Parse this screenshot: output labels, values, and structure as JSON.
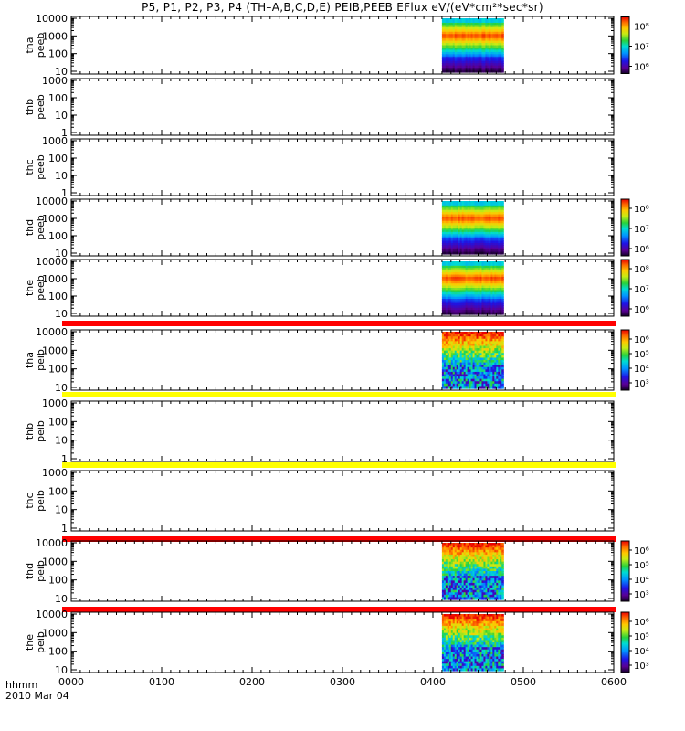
{
  "title": "P5, P1, P2, P3, P4 (TH–A,B,C,D,E) PEIB,PEEB EFlux eV/(eV*cm²*sec*sr)",
  "footer": {
    "hhmm": "hhmm",
    "date": "2010 Mar 04"
  },
  "chart_data": {
    "type": "heatmap",
    "x_axis": {
      "range": [
        0,
        600
      ],
      "tick_values": [
        0,
        100,
        200,
        300,
        400,
        500,
        600
      ],
      "tick_labels": [
        "0000",
        "0100",
        "0200",
        "0300",
        "0400",
        "0500",
        "0600"
      ]
    },
    "panels": [
      {
        "probe": "tha",
        "product": "peeb",
        "ylabels": [
          "10000",
          "1000",
          "100",
          "10"
        ],
        "ylog": [
          1,
          4
        ],
        "yvals": [
          10000,
          1000,
          100,
          10
        ],
        "data_x": [
          410,
          478
        ],
        "kind": "electron",
        "colorbar": {
          "labels": [
            "10⁸",
            "10⁷",
            "10⁶"
          ]
        },
        "indicator_bar": null
      },
      {
        "probe": "thb",
        "product": "peeb",
        "ylabels": [
          "1000",
          "100",
          "10",
          "1"
        ],
        "ylog": [
          0,
          3
        ],
        "yvals": [
          1000,
          100,
          10,
          1
        ],
        "data_x": null,
        "kind": "none",
        "colorbar": null,
        "indicator_bar": null
      },
      {
        "probe": "thc",
        "product": "peeb",
        "ylabels": [
          "1000",
          "100",
          "10",
          "1"
        ],
        "ylog": [
          0,
          3
        ],
        "yvals": [
          1000,
          100,
          10,
          1
        ],
        "data_x": null,
        "kind": "none",
        "colorbar": null,
        "indicator_bar": null
      },
      {
        "probe": "thd",
        "product": "peeb",
        "ylabels": [
          "10000",
          "1000",
          "100",
          "10"
        ],
        "ylog": [
          1,
          4
        ],
        "yvals": [
          10000,
          1000,
          100,
          10
        ],
        "data_x": [
          410,
          478
        ],
        "kind": "electron",
        "colorbar": {
          "labels": [
            "10⁸",
            "10⁷",
            "10⁶"
          ]
        },
        "indicator_bar": null
      },
      {
        "probe": "the",
        "product": "peeb",
        "ylabels": [
          "10000",
          "1000",
          "100",
          "10"
        ],
        "ylog": [
          1,
          4
        ],
        "yvals": [
          10000,
          1000,
          100,
          10
        ],
        "data_x": [
          410,
          478
        ],
        "kind": "electron",
        "colorbar": {
          "labels": [
            "10⁸",
            "10⁷",
            "10⁶"
          ]
        },
        "indicator_bar": null
      },
      {
        "probe": "tha",
        "product": "peib",
        "ylabels": [
          "10000",
          "1000",
          "100",
          "10"
        ],
        "ylog": [
          1,
          4
        ],
        "yvals": [
          10000,
          1000,
          100,
          10
        ],
        "data_x": [
          410,
          478
        ],
        "kind": "ion",
        "colorbar": {
          "labels": [
            "10⁶",
            "10⁵",
            "10⁴",
            "10³"
          ]
        },
        "indicator_bar": "#ff0000"
      },
      {
        "probe": "thb",
        "product": "peib",
        "ylabels": [
          "1000",
          "100",
          "10",
          "1"
        ],
        "ylog": [
          0,
          3
        ],
        "yvals": [
          1000,
          100,
          10,
          1
        ],
        "data_x": null,
        "kind": "none",
        "colorbar": null,
        "indicator_bar": "#ffff00"
      },
      {
        "probe": "thc",
        "product": "peib",
        "ylabels": [
          "1000",
          "100",
          "10",
          "1"
        ],
        "ylog": [
          0,
          3
        ],
        "yvals": [
          1000,
          100,
          10,
          1
        ],
        "data_x": null,
        "kind": "none",
        "colorbar": null,
        "indicator_bar": "#ffff00"
      },
      {
        "probe": "thd",
        "product": "peib",
        "ylabels": [
          "10000",
          "1000",
          "100",
          "10"
        ],
        "ylog": [
          1,
          4
        ],
        "yvals": [
          10000,
          1000,
          100,
          10
        ],
        "data_x": [
          410,
          478
        ],
        "kind": "ion",
        "colorbar": {
          "labels": [
            "10⁶",
            "10⁵",
            "10⁴",
            "10³"
          ]
        },
        "indicator_bar": "#ff0000"
      },
      {
        "probe": "the",
        "product": "peib",
        "ylabels": [
          "10000",
          "1000",
          "100",
          "10"
        ],
        "ylog": [
          1,
          4
        ],
        "yvals": [
          10000,
          1000,
          100,
          10
        ],
        "data_x": [
          410,
          478
        ],
        "kind": "ion",
        "colorbar": {
          "labels": [
            "10⁶",
            "10⁵",
            "10⁴",
            "10³"
          ]
        },
        "indicator_bar": "#ff0000"
      }
    ]
  }
}
